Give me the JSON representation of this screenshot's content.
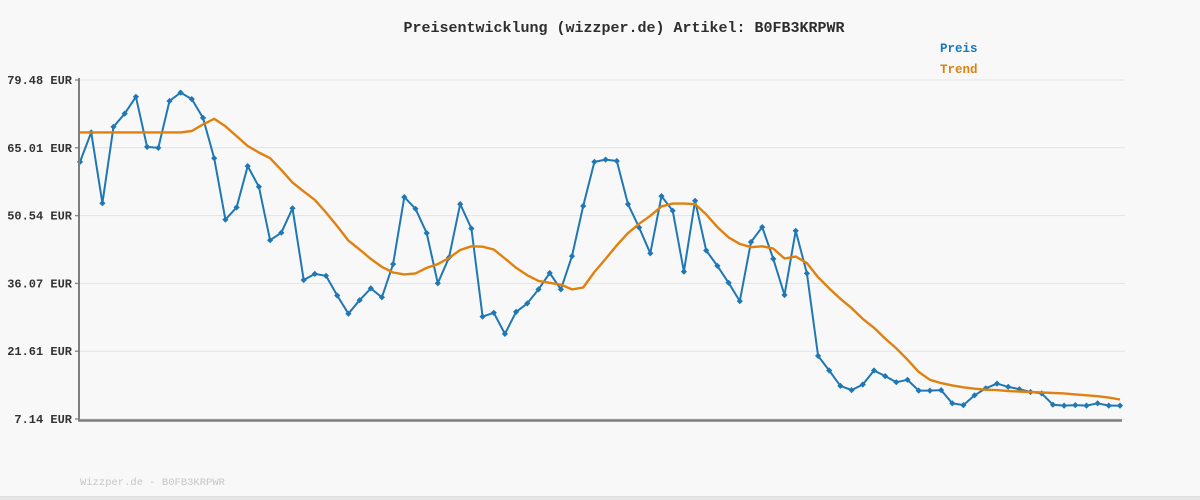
{
  "chart": {
    "title": "Preisentwicklung (wizzper.de) Artikel: B0FB3KRPWR",
    "watermark": "Wizzper.de - B0FB3KRPWR",
    "legend": {
      "preis": "Preis",
      "trend": "Trend"
    }
  },
  "colors": {
    "preis_line": "#1f77b4",
    "trend_line": "#e0810f",
    "legend_preis_text": "#1778be",
    "legend_trend_text": "#dd820f",
    "gridline": "#e3e3e3",
    "axis": "#7e7e7e",
    "background": "#f8f8f8",
    "tick_label_text": "#333333",
    "watermark_text": "#c6c6c6"
  },
  "chart_data": {
    "type": "line",
    "title": "Preisentwicklung (wizzper.de) Artikel: B0FB3KRPWR",
    "xlabel": "",
    "ylabel": "EUR",
    "x_axis_labels_visible": false,
    "grid": "horizontal",
    "legend_position": "top-right",
    "ylim": [
      7.14,
      79.48
    ],
    "y_ticks": [
      {
        "label": "79.48 EUR",
        "value": 79.48
      },
      {
        "label": "65.01 EUR",
        "value": 65.01
      },
      {
        "label": "50.54 EUR",
        "value": 50.54
      },
      {
        "label": "36.07 EUR",
        "value": 36.07
      },
      {
        "label": "21.61 EUR",
        "value": 21.61
      },
      {
        "label": "7.14 EUR",
        "value": 7.14
      }
    ],
    "series": [
      {
        "name": "Preis",
        "color": "#1f77b4",
        "marker": "diamond",
        "values": [
          62.0,
          68.3,
          53.2,
          69.5,
          72.3,
          75.9,
          65.2,
          65.0,
          75.0,
          76.8,
          75.4,
          71.4,
          62.8,
          49.7,
          52.3,
          61.1,
          56.7,
          45.3,
          46.9,
          52.1,
          36.8,
          38.1,
          37.7,
          33.5,
          29.6,
          32.5,
          35.0,
          33.1,
          40.2,
          54.5,
          52.0,
          46.8,
          36.1,
          41.6,
          53.0,
          47.8,
          29.0,
          29.8,
          25.3,
          30.0,
          31.8,
          34.8,
          38.3,
          34.8,
          41.9,
          52.6,
          62.0,
          62.5,
          62.2,
          53.0,
          48.0,
          42.5,
          54.7,
          51.6,
          38.6,
          53.7,
          43.1,
          39.8,
          36.2,
          32.3,
          44.9,
          48.1,
          41.3,
          33.6,
          47.3,
          38.2,
          20.6,
          17.5,
          14.2,
          13.3,
          14.5,
          17.5,
          16.3,
          15.0,
          15.5,
          13.2,
          13.2,
          13.3,
          10.5,
          10.1,
          12.2,
          13.7,
          14.7,
          14.0,
          13.5,
          12.9,
          12.6,
          10.2,
          10.0,
          10.1,
          10.0,
          10.5,
          10.0,
          10.0
        ]
      },
      {
        "name": "Trend",
        "color": "#e0810f",
        "marker": "none",
        "values": [
          68.3,
          68.3,
          68.3,
          68.3,
          68.3,
          68.3,
          68.3,
          68.3,
          68.3,
          68.3,
          68.6,
          70.0,
          71.2,
          69.6,
          67.5,
          65.4,
          64.0,
          62.8,
          60.3,
          57.6,
          55.7,
          53.9,
          51.2,
          48.3,
          45.2,
          43.3,
          41.3,
          39.6,
          38.4,
          38.0,
          38.2,
          39.4,
          40.2,
          41.5,
          43.2,
          44.0,
          43.9,
          43.3,
          41.4,
          39.4,
          37.8,
          36.6,
          36.2,
          35.8,
          34.8,
          35.2,
          38.5,
          41.3,
          44.2,
          46.8,
          48.8,
          50.5,
          52.5,
          53.1,
          53.1,
          53.0,
          50.8,
          48.1,
          45.9,
          44.5,
          43.8,
          44.0,
          43.5,
          41.4,
          41.8,
          40.4,
          37.4,
          35.0,
          32.8,
          30.8,
          28.5,
          26.6,
          24.3,
          22.2,
          19.8,
          17.2,
          15.5,
          14.8,
          14.3,
          13.9,
          13.6,
          13.4,
          13.3,
          13.1,
          13.0,
          12.9,
          12.8,
          12.7,
          12.6,
          12.4,
          12.2,
          12.0,
          11.7,
          11.3
        ]
      }
    ]
  }
}
